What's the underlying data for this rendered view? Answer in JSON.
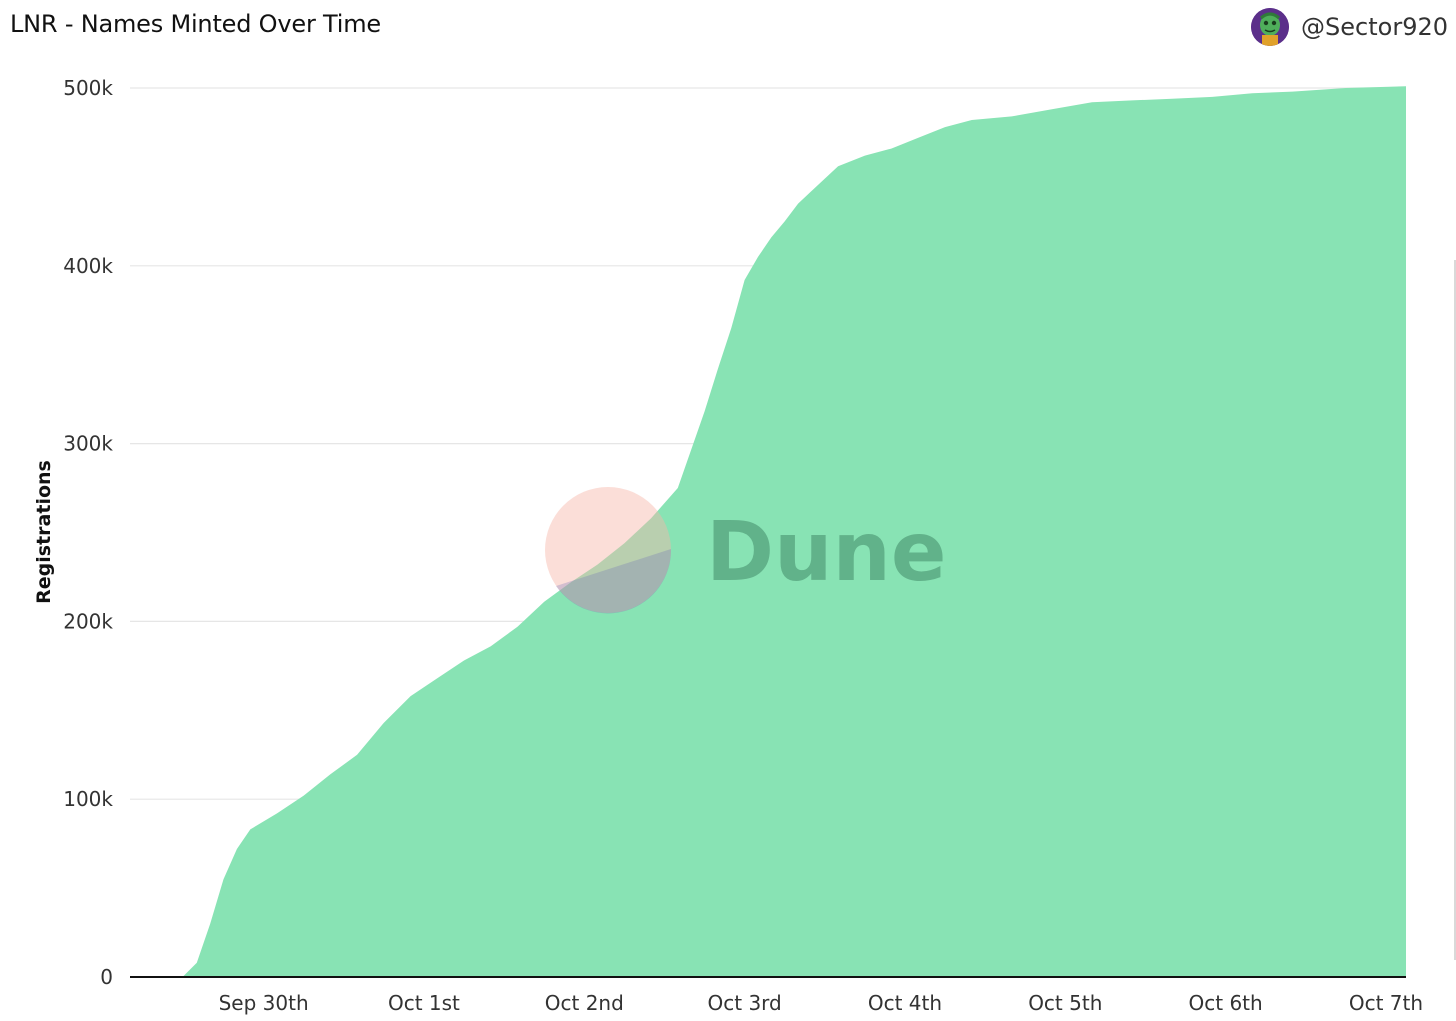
{
  "header": {
    "title": "LNR - Names Minted Over Time",
    "username": "@Sector920",
    "avatar_icon": "avatar-icon"
  },
  "watermark": {
    "text": "Dune"
  },
  "colors": {
    "area_fill": "#88e3b4",
    "grid": "#e6e6e6",
    "axis": "#111111"
  },
  "chart_data": {
    "type": "area",
    "title": "LNR - Names Minted Over Time",
    "xlabel": "",
    "ylabel": "Registrations",
    "x_tick_labels": [
      "Sep 30th",
      "Oct 1st",
      "Oct 2nd",
      "Oct 3rd",
      "Oct 4th",
      "Oct 5th",
      "Oct 6th",
      "Oct 7th"
    ],
    "y_tick_labels": [
      "0",
      "100k",
      "200k",
      "300k",
      "400k",
      "500k"
    ],
    "y_ticks": [
      0,
      100000,
      200000,
      300000,
      400000,
      500000
    ],
    "ylim": [
      0,
      500000
    ],
    "xlim": [
      "2022-09-29 16:00",
      "2022-10-07 15:00"
    ],
    "grid": "horizontal",
    "legend": "none",
    "series": [
      {
        "x": [
          "2022-09-29 16:00",
          "2022-09-29 20:00",
          "2022-09-30 00:00",
          "2022-09-30 02:00",
          "2022-09-30 04:00",
          "2022-09-30 06:00",
          "2022-09-30 08:00",
          "2022-09-30 10:00",
          "2022-09-30 14:00",
          "2022-09-30 18:00",
          "2022-09-30 22:00",
          "2022-10-01 02:00",
          "2022-10-01 06:00",
          "2022-10-01 10:00",
          "2022-10-01 14:00",
          "2022-10-01 18:00",
          "2022-10-01 22:00",
          "2022-10-02 02:00",
          "2022-10-02 06:00",
          "2022-10-02 10:00",
          "2022-10-02 14:00",
          "2022-10-02 18:00",
          "2022-10-02 22:00",
          "2022-10-03 02:00",
          "2022-10-03 06:00",
          "2022-10-03 08:00",
          "2022-10-03 10:00",
          "2022-10-03 12:00",
          "2022-10-03 14:00",
          "2022-10-03 16:00",
          "2022-10-03 18:00",
          "2022-10-03 20:00",
          "2022-10-03 22:00",
          "2022-10-04 02:00",
          "2022-10-04 06:00",
          "2022-10-04 10:00",
          "2022-10-04 14:00",
          "2022-10-04 18:00",
          "2022-10-04 22:00",
          "2022-10-05 04:00",
          "2022-10-05 10:00",
          "2022-10-05 16:00",
          "2022-10-05 22:00",
          "2022-10-06 04:00",
          "2022-10-06 10:00",
          "2022-10-06 16:00",
          "2022-10-06 22:00",
          "2022-10-07 06:00",
          "2022-10-07 15:00"
        ],
        "y": [
          0,
          0,
          500,
          8000,
          30000,
          55000,
          72000,
          83000,
          92000,
          102000,
          114000,
          125000,
          143000,
          158000,
          168000,
          178000,
          186000,
          197000,
          211000,
          222000,
          232000,
          244000,
          258000,
          275000,
          318000,
          342000,
          365000,
          392000,
          405000,
          416000,
          425000,
          435000,
          442000,
          456000,
          462000,
          466000,
          472000,
          478000,
          482000,
          484000,
          488000,
          492000,
          493000,
          494000,
          495000,
          497000,
          498000,
          500000,
          501000
        ]
      }
    ]
  }
}
